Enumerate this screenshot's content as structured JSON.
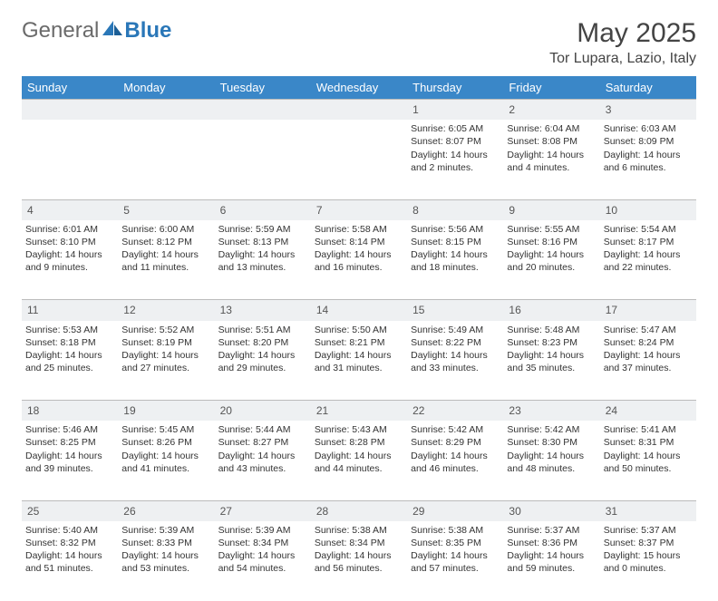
{
  "brand": {
    "part1": "General",
    "part2": "Blue",
    "accent": "#2a77b8",
    "gray": "#6a6a6a"
  },
  "title": "May 2025",
  "location": "Tor Lupara, Lazio, Italy",
  "header_bg": "#3a87c8",
  "daybar_bg": "#eef0f2",
  "weekdays": [
    "Sunday",
    "Monday",
    "Tuesday",
    "Wednesday",
    "Thursday",
    "Friday",
    "Saturday"
  ],
  "weeks": [
    [
      null,
      null,
      null,
      null,
      {
        "n": "1",
        "sr": "Sunrise: 6:05 AM",
        "ss": "Sunset: 8:07 PM",
        "d1": "Daylight: 14 hours",
        "d2": "and 2 minutes."
      },
      {
        "n": "2",
        "sr": "Sunrise: 6:04 AM",
        "ss": "Sunset: 8:08 PM",
        "d1": "Daylight: 14 hours",
        "d2": "and 4 minutes."
      },
      {
        "n": "3",
        "sr": "Sunrise: 6:03 AM",
        "ss": "Sunset: 8:09 PM",
        "d1": "Daylight: 14 hours",
        "d2": "and 6 minutes."
      }
    ],
    [
      {
        "n": "4",
        "sr": "Sunrise: 6:01 AM",
        "ss": "Sunset: 8:10 PM",
        "d1": "Daylight: 14 hours",
        "d2": "and 9 minutes."
      },
      {
        "n": "5",
        "sr": "Sunrise: 6:00 AM",
        "ss": "Sunset: 8:12 PM",
        "d1": "Daylight: 14 hours",
        "d2": "and 11 minutes."
      },
      {
        "n": "6",
        "sr": "Sunrise: 5:59 AM",
        "ss": "Sunset: 8:13 PM",
        "d1": "Daylight: 14 hours",
        "d2": "and 13 minutes."
      },
      {
        "n": "7",
        "sr": "Sunrise: 5:58 AM",
        "ss": "Sunset: 8:14 PM",
        "d1": "Daylight: 14 hours",
        "d2": "and 16 minutes."
      },
      {
        "n": "8",
        "sr": "Sunrise: 5:56 AM",
        "ss": "Sunset: 8:15 PM",
        "d1": "Daylight: 14 hours",
        "d2": "and 18 minutes."
      },
      {
        "n": "9",
        "sr": "Sunrise: 5:55 AM",
        "ss": "Sunset: 8:16 PM",
        "d1": "Daylight: 14 hours",
        "d2": "and 20 minutes."
      },
      {
        "n": "10",
        "sr": "Sunrise: 5:54 AM",
        "ss": "Sunset: 8:17 PM",
        "d1": "Daylight: 14 hours",
        "d2": "and 22 minutes."
      }
    ],
    [
      {
        "n": "11",
        "sr": "Sunrise: 5:53 AM",
        "ss": "Sunset: 8:18 PM",
        "d1": "Daylight: 14 hours",
        "d2": "and 25 minutes."
      },
      {
        "n": "12",
        "sr": "Sunrise: 5:52 AM",
        "ss": "Sunset: 8:19 PM",
        "d1": "Daylight: 14 hours",
        "d2": "and 27 minutes."
      },
      {
        "n": "13",
        "sr": "Sunrise: 5:51 AM",
        "ss": "Sunset: 8:20 PM",
        "d1": "Daylight: 14 hours",
        "d2": "and 29 minutes."
      },
      {
        "n": "14",
        "sr": "Sunrise: 5:50 AM",
        "ss": "Sunset: 8:21 PM",
        "d1": "Daylight: 14 hours",
        "d2": "and 31 minutes."
      },
      {
        "n": "15",
        "sr": "Sunrise: 5:49 AM",
        "ss": "Sunset: 8:22 PM",
        "d1": "Daylight: 14 hours",
        "d2": "and 33 minutes."
      },
      {
        "n": "16",
        "sr": "Sunrise: 5:48 AM",
        "ss": "Sunset: 8:23 PM",
        "d1": "Daylight: 14 hours",
        "d2": "and 35 minutes."
      },
      {
        "n": "17",
        "sr": "Sunrise: 5:47 AM",
        "ss": "Sunset: 8:24 PM",
        "d1": "Daylight: 14 hours",
        "d2": "and 37 minutes."
      }
    ],
    [
      {
        "n": "18",
        "sr": "Sunrise: 5:46 AM",
        "ss": "Sunset: 8:25 PM",
        "d1": "Daylight: 14 hours",
        "d2": "and 39 minutes."
      },
      {
        "n": "19",
        "sr": "Sunrise: 5:45 AM",
        "ss": "Sunset: 8:26 PM",
        "d1": "Daylight: 14 hours",
        "d2": "and 41 minutes."
      },
      {
        "n": "20",
        "sr": "Sunrise: 5:44 AM",
        "ss": "Sunset: 8:27 PM",
        "d1": "Daylight: 14 hours",
        "d2": "and 43 minutes."
      },
      {
        "n": "21",
        "sr": "Sunrise: 5:43 AM",
        "ss": "Sunset: 8:28 PM",
        "d1": "Daylight: 14 hours",
        "d2": "and 44 minutes."
      },
      {
        "n": "22",
        "sr": "Sunrise: 5:42 AM",
        "ss": "Sunset: 8:29 PM",
        "d1": "Daylight: 14 hours",
        "d2": "and 46 minutes."
      },
      {
        "n": "23",
        "sr": "Sunrise: 5:42 AM",
        "ss": "Sunset: 8:30 PM",
        "d1": "Daylight: 14 hours",
        "d2": "and 48 minutes."
      },
      {
        "n": "24",
        "sr": "Sunrise: 5:41 AM",
        "ss": "Sunset: 8:31 PM",
        "d1": "Daylight: 14 hours",
        "d2": "and 50 minutes."
      }
    ],
    [
      {
        "n": "25",
        "sr": "Sunrise: 5:40 AM",
        "ss": "Sunset: 8:32 PM",
        "d1": "Daylight: 14 hours",
        "d2": "and 51 minutes."
      },
      {
        "n": "26",
        "sr": "Sunrise: 5:39 AM",
        "ss": "Sunset: 8:33 PM",
        "d1": "Daylight: 14 hours",
        "d2": "and 53 minutes."
      },
      {
        "n": "27",
        "sr": "Sunrise: 5:39 AM",
        "ss": "Sunset: 8:34 PM",
        "d1": "Daylight: 14 hours",
        "d2": "and 54 minutes."
      },
      {
        "n": "28",
        "sr": "Sunrise: 5:38 AM",
        "ss": "Sunset: 8:34 PM",
        "d1": "Daylight: 14 hours",
        "d2": "and 56 minutes."
      },
      {
        "n": "29",
        "sr": "Sunrise: 5:38 AM",
        "ss": "Sunset: 8:35 PM",
        "d1": "Daylight: 14 hours",
        "d2": "and 57 minutes."
      },
      {
        "n": "30",
        "sr": "Sunrise: 5:37 AM",
        "ss": "Sunset: 8:36 PM",
        "d1": "Daylight: 14 hours",
        "d2": "and 59 minutes."
      },
      {
        "n": "31",
        "sr": "Sunrise: 5:37 AM",
        "ss": "Sunset: 8:37 PM",
        "d1": "Daylight: 15 hours",
        "d2": "and 0 minutes."
      }
    ]
  ]
}
